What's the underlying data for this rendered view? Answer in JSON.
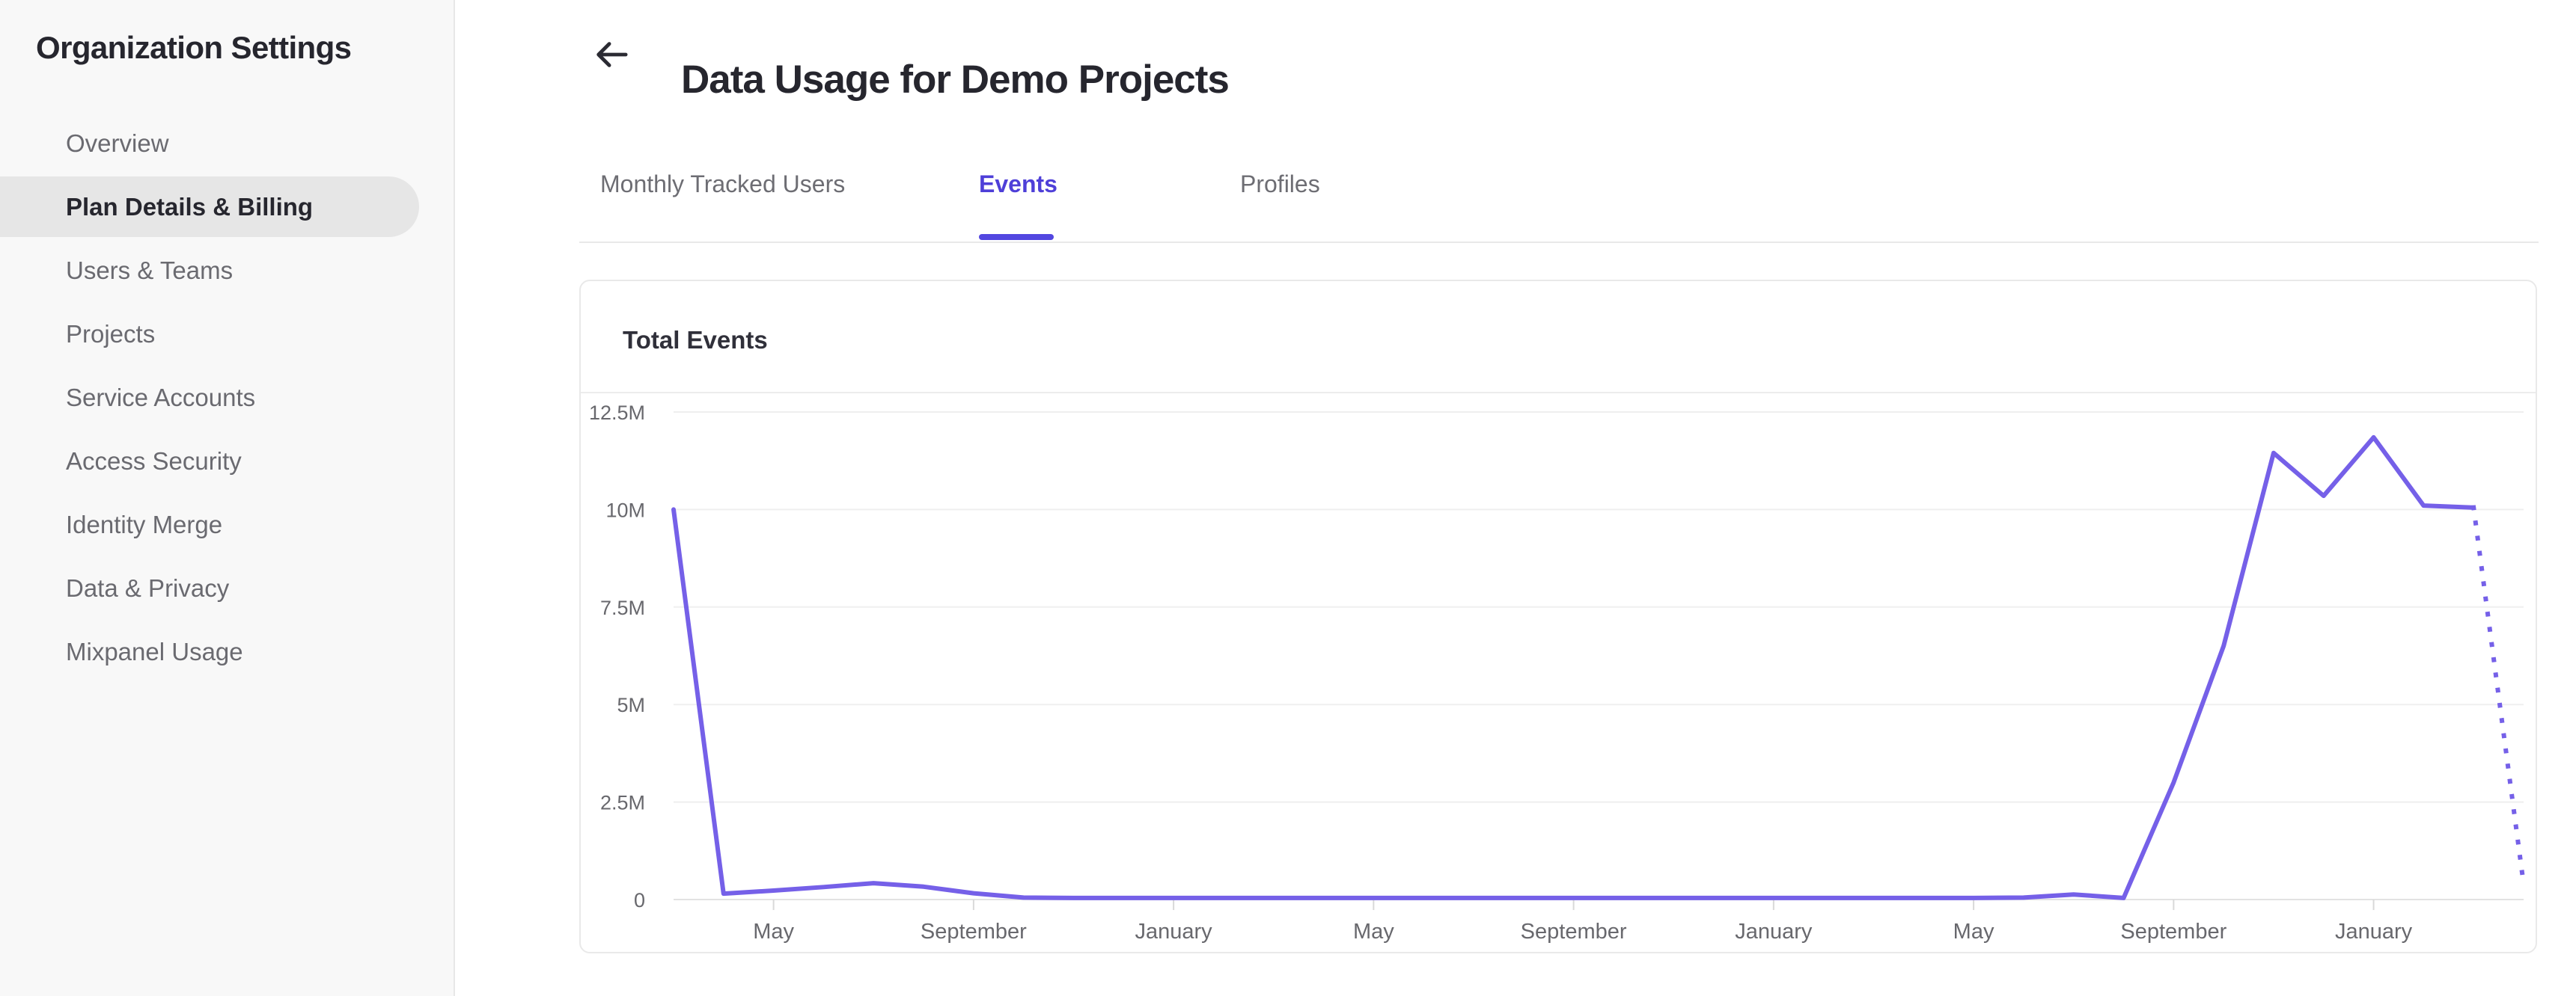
{
  "sidebar": {
    "title": "Organization Settings",
    "items": [
      {
        "label": "Overview",
        "active": false
      },
      {
        "label": "Plan Details & Billing",
        "active": true
      },
      {
        "label": "Users & Teams",
        "active": false
      },
      {
        "label": "Projects",
        "active": false
      },
      {
        "label": "Service Accounts",
        "active": false
      },
      {
        "label": "Access Security",
        "active": false
      },
      {
        "label": "Identity Merge",
        "active": false
      },
      {
        "label": "Data & Privacy",
        "active": false
      },
      {
        "label": "Mixpanel Usage",
        "active": false
      }
    ]
  },
  "header": {
    "title": "Data Usage for Demo Projects",
    "back_icon": "left-arrow"
  },
  "tabs": [
    {
      "label": "Monthly Tracked Users",
      "active": false
    },
    {
      "label": "Events",
      "active": true
    },
    {
      "label": "Profiles",
      "active": false
    }
  ],
  "card": {
    "title": "Total Events"
  },
  "colors": {
    "accent_tab": "#4E3FD8",
    "tab_underline": "#5347E0",
    "chart_line": "#7560E8",
    "sidebar_bg": "#f8f8f8",
    "pill_bg": "#e6e6e6",
    "text_dark": "#26262e",
    "text_gray": "#6a6a70",
    "border": "#e9e9e9",
    "grid": "#efefef",
    "axis_label": "#68686d"
  },
  "chart_data": {
    "type": "line",
    "title": "Total Events",
    "series_name": "Total Events",
    "xlabel": "",
    "ylabel": "",
    "x_unit": "month",
    "ylim": [
      0,
      12500000
    ],
    "grid": "horizontal",
    "legend": "none",
    "y_axis": [
      {
        "label": "12.5M",
        "value": 12500000
      },
      {
        "label": "10M",
        "value": 10000000
      },
      {
        "label": "7.5M",
        "value": 7500000
      },
      {
        "label": "5M",
        "value": 5000000
      },
      {
        "label": "2.5M",
        "value": 2500000
      },
      {
        "label": "0",
        "value": 0
      }
    ],
    "x_ticks": [
      {
        "label": "May",
        "index": 2
      },
      {
        "label": "September",
        "index": 6
      },
      {
        "label": "January",
        "index": 10
      },
      {
        "label": "May",
        "index": 14
      },
      {
        "label": "September",
        "index": 18
      },
      {
        "label": "January",
        "index": 22
      },
      {
        "label": "May",
        "index": 26
      },
      {
        "label": "September",
        "index": 30
      },
      {
        "label": "January",
        "index": 34
      }
    ],
    "values": [
      10000000,
      150000,
      230000,
      320000,
      420000,
      330000,
      160000,
      50000,
      40000,
      40000,
      40000,
      40000,
      40000,
      40000,
      40000,
      40000,
      40000,
      40000,
      40000,
      40000,
      40000,
      40000,
      40000,
      40000,
      40000,
      40000,
      40000,
      50000,
      130000,
      40000,
      3000000,
      6500000,
      11450000,
      10350000,
      11850000,
      10100000,
      10050000
    ],
    "projected_value": 400000,
    "projected_style": "dotted"
  }
}
